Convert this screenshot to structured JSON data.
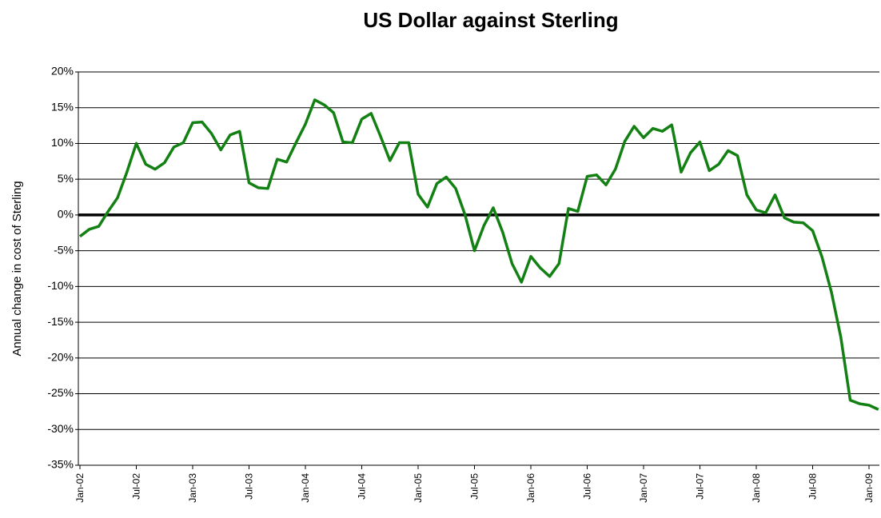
{
  "chart_data": {
    "type": "line",
    "title": "US Dollar against Sterling",
    "y_label": "Annual change in cost of Sterling",
    "categories": [
      "Jan-02",
      null,
      null,
      null,
      null,
      null,
      "Jul-02",
      null,
      null,
      null,
      null,
      null,
      "Jan-03",
      null,
      null,
      null,
      null,
      null,
      "Jul-03",
      null,
      null,
      null,
      null,
      null,
      "Jan-04",
      null,
      null,
      null,
      null,
      null,
      "Jul-04",
      null,
      null,
      null,
      null,
      null,
      "Jan-05",
      null,
      null,
      null,
      null,
      null,
      "Jul-05",
      null,
      null,
      null,
      null,
      null,
      "Jan-06",
      null,
      null,
      null,
      null,
      null,
      "Jul-06",
      null,
      null,
      null,
      null,
      null,
      "Jan-07",
      null,
      null,
      null,
      null,
      null,
      "Jul-07",
      null,
      null,
      null,
      null,
      null,
      "Jan-08",
      null,
      null,
      null,
      null,
      null,
      "Jul-08",
      null,
      null,
      null,
      null,
      null,
      "Jan-09",
      null
    ],
    "series": [
      {
        "color": "#138013",
        "values": [
          -3.0,
          -2.0,
          -1.6,
          0.5,
          2.4,
          6.0,
          10.0,
          7.1,
          6.4,
          7.3,
          9.5,
          10.1,
          12.9,
          13.0,
          11.4,
          9.1,
          11.2,
          11.7,
          4.5,
          3.8,
          3.7,
          7.8,
          7.4,
          10.1,
          12.7,
          16.1,
          15.4,
          14.3,
          10.2,
          10.1,
          13.4,
          14.2,
          11.0,
          7.6,
          10.1,
          10.1,
          2.9,
          1.1,
          4.4,
          5.3,
          3.7,
          0.0,
          -5.0,
          -1.5,
          1.0,
          -2.4,
          -6.8,
          -9.4,
          -5.8,
          -7.4,
          -8.6,
          -6.8,
          0.9,
          0.5,
          5.4,
          5.6,
          4.2,
          6.4,
          10.3,
          12.4,
          10.8,
          12.1,
          11.7,
          12.6,
          6.0,
          8.7,
          10.2,
          6.2,
          7.1,
          9.0,
          8.3,
          2.8,
          0.7,
          0.3,
          2.8,
          -0.4,
          -1.0,
          -1.1,
          -2.2,
          -5.9,
          -10.8,
          -17.1,
          -25.9,
          -26.4,
          -26.6,
          -27.2
        ]
      }
    ],
    "ylim": [
      -35,
      20
    ],
    "yticks": [
      {
        "value": -35,
        "label": "-35%"
      },
      {
        "value": -30,
        "label": "-30%"
      },
      {
        "value": -25,
        "label": "-25%"
      },
      {
        "value": -20,
        "label": "-20%"
      },
      {
        "value": -15,
        "label": "-15%"
      },
      {
        "value": -10,
        "label": "-10%"
      },
      {
        "value": -5,
        "label": "-5%"
      },
      {
        "value": 0,
        "label": "0%"
      },
      {
        "value": 5,
        "label": "5%"
      },
      {
        "value": 10,
        "label": "10%"
      },
      {
        "value": 15,
        "label": "15%"
      },
      {
        "value": 20,
        "label": "20%"
      }
    ],
    "grid": true,
    "zero_line": true
  }
}
